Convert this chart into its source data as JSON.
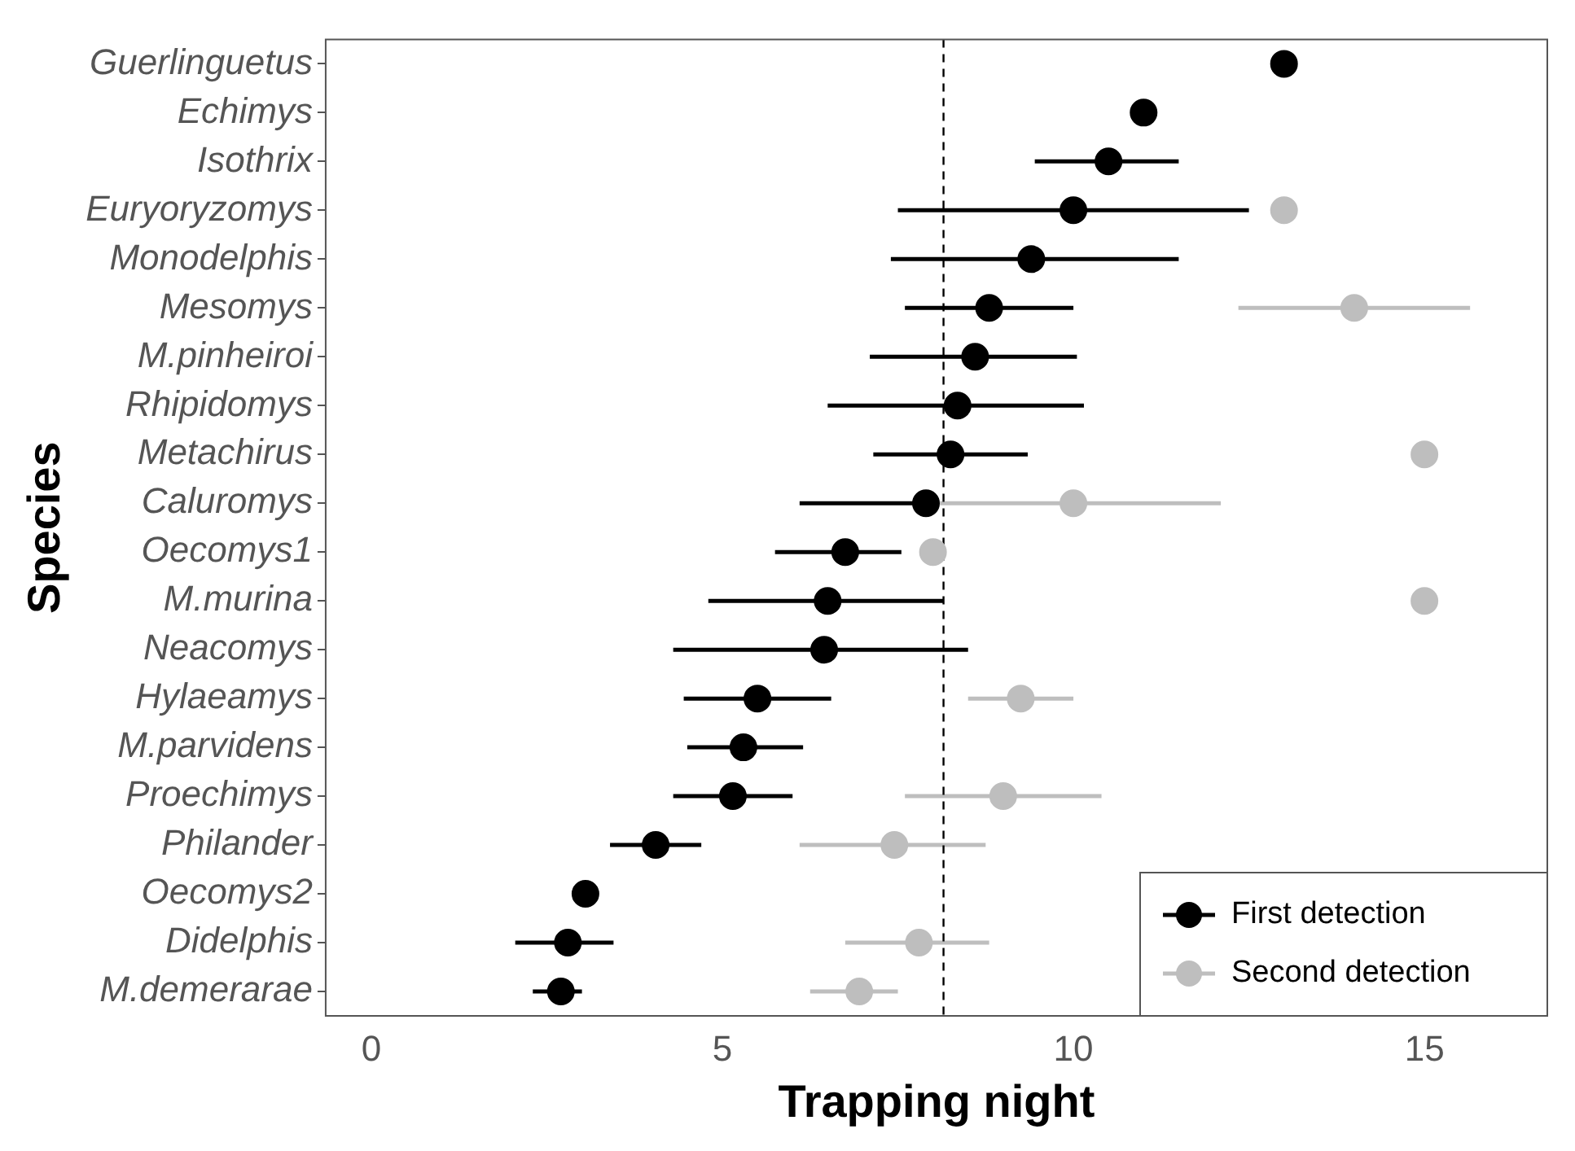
{
  "chart_data": {
    "type": "scatter",
    "orientation": "horizontal",
    "xlabel": "Trapping night",
    "ylabel": "Species",
    "categories": [
      "Guerlinguetus",
      "Echimys",
      "Isothrix",
      "Euryoryzomys",
      "Monodelphis",
      "Mesomys",
      "M.pinheiroi",
      "Rhipidomys",
      "Metachirus",
      "Caluromys",
      "Oecomys1",
      "M.murina",
      "Neacomys",
      "Hylaeamys",
      "M.parvidens",
      "Proechimys",
      "Philander",
      "Oecomys2",
      "Didelphis",
      "M.demerarae"
    ],
    "series": [
      {
        "name": "First detection",
        "color": "#000000",
        "values": [
          13.0,
          11.0,
          10.5,
          10.0,
          9.4,
          8.8,
          8.6,
          8.35,
          8.25,
          7.9,
          6.75,
          6.5,
          6.45,
          5.5,
          5.3,
          5.15,
          4.05,
          3.05,
          2.8,
          2.7
        ],
        "errors": [
          null,
          null,
          [
            9.45,
            11.5
          ],
          [
            7.5,
            12.5
          ],
          [
            7.4,
            11.5
          ],
          [
            7.6,
            10.0
          ],
          [
            7.1,
            10.05
          ],
          [
            6.5,
            10.15
          ],
          [
            7.15,
            9.35
          ],
          [
            6.1,
            7.95
          ],
          [
            5.75,
            7.55
          ],
          [
            4.8,
            8.15
          ],
          [
            4.3,
            8.5
          ],
          [
            4.45,
            6.55
          ],
          [
            4.5,
            6.15
          ],
          [
            4.3,
            6.0
          ],
          [
            3.4,
            4.7
          ],
          null,
          [
            2.05,
            3.45
          ],
          [
            2.3,
            3.0
          ]
        ]
      },
      {
        "name": "Second detection",
        "color": "#bebebe",
        "values": [
          null,
          null,
          null,
          13.0,
          null,
          14.0,
          null,
          null,
          15.0,
          10.0,
          8.0,
          15.0,
          null,
          9.25,
          null,
          9.0,
          7.45,
          null,
          7.8,
          6.95
        ],
        "errors": [
          null,
          null,
          null,
          null,
          null,
          [
            12.35,
            15.65
          ],
          null,
          null,
          null,
          [
            8.1,
            12.1
          ],
          null,
          null,
          null,
          [
            8.5,
            10.0
          ],
          null,
          [
            7.6,
            10.4
          ],
          [
            6.1,
            8.75
          ],
          null,
          [
            6.75,
            8.8
          ],
          [
            6.25,
            7.5
          ]
        ]
      }
    ],
    "xlim": [
      -0.65,
      16.75
    ],
    "xticks": [
      0,
      5,
      10,
      15
    ],
    "ref_lines": [
      {
        "axis": "x",
        "value": 8.15,
        "line_style": "dashed",
        "color": "#000000"
      }
    ],
    "grid": false,
    "legend": "bottom right",
    "marker": "circle"
  }
}
